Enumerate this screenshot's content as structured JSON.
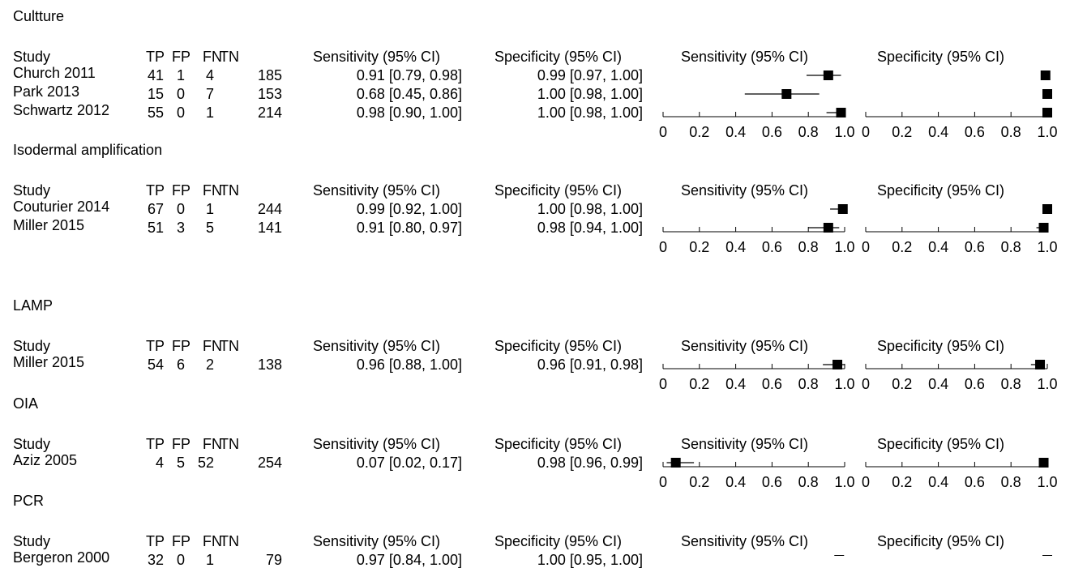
{
  "table_headers": {
    "study": "Study",
    "tp": "TP",
    "fp": "FP",
    "fn": "FN",
    "tn": "TN",
    "sensitivity": "Sensitivity (95% CI)",
    "specificity": "Specificity (95% CI)"
  },
  "plot_headers": {
    "sensitivity": "Sensitivity (95% CI)",
    "specificity": "Specificity (95% CI)"
  },
  "axis_ticks": [
    "0",
    "0.2",
    "0.4",
    "0.6",
    "0.8",
    "1.0"
  ],
  "groups": [
    {
      "title": "Cultture",
      "studies": [
        {
          "name": "Church 2011",
          "tp": "41",
          "fp": "1",
          "fn": "4",
          "tn": "185",
          "sens_text": "0.91 [0.79, 0.98]",
          "spec_text": "0.99 [0.97, 1.00]"
        },
        {
          "name": "Park 2013",
          "tp": "15",
          "fp": "0",
          "fn": "7",
          "tn": "153",
          "sens_text": "0.68 [0.45, 0.86]",
          "spec_text": "1.00 [0.98, 1.00]"
        },
        {
          "name": "Schwartz 2012",
          "tp": "55",
          "fp": "0",
          "fn": "1",
          "tn": "214",
          "sens_text": "0.98 [0.90, 1.00]",
          "spec_text": "1.00 [0.98, 1.00]"
        }
      ]
    },
    {
      "title": "Isodermal amplification",
      "studies": [
        {
          "name": "Couturier 2014",
          "tp": "67",
          "fp": "0",
          "fn": "1",
          "tn": "244",
          "sens_text": "0.99 [0.92, 1.00]",
          "spec_text": "1.00 [0.98, 1.00]"
        },
        {
          "name": "Miller 2015",
          "tp": "51",
          "fp": "3",
          "fn": "5",
          "tn": "141",
          "sens_text": "0.91 [0.80, 0.97]",
          "spec_text": "0.98 [0.94, 1.00]"
        }
      ]
    },
    {
      "title": "LAMP",
      "studies": [
        {
          "name": "Miller 2015",
          "tp": "54",
          "fp": "6",
          "fn": "2",
          "tn": "138",
          "sens_text": "0.96 [0.88, 1.00]",
          "spec_text": "0.96 [0.91, 0.98]"
        }
      ]
    },
    {
      "title": "OIA",
      "studies": [
        {
          "name": "Aziz 2005",
          "tp": "4",
          "fp": "5",
          "fn": "52",
          "tn": "254",
          "sens_text": "0.07 [0.02, 0.17]",
          "spec_text": "0.98 [0.96, 0.99]"
        }
      ]
    },
    {
      "title": "PCR",
      "studies": [
        {
          "name": "Bergeron 2000",
          "tp": "32",
          "fp": "0",
          "fn": "1",
          "tn": "79",
          "sens_text": "0.97 [0.84, 1.00]",
          "spec_text": "1.00 [0.95, 1.00]"
        }
      ]
    }
  ],
  "chart_data": {
    "type": "forest",
    "xlim": [
      0,
      1
    ],
    "x_ticks": [
      0,
      0.2,
      0.4,
      0.6,
      0.8,
      1.0
    ],
    "panels": [
      "Sensitivity (95% CI)",
      "Specificity (95% CI)"
    ],
    "groups": [
      {
        "title": "Cultture",
        "studies": [
          {
            "name": "Church 2011",
            "sensitivity": [
              0.91,
              0.79,
              0.98
            ],
            "specificity": [
              0.99,
              0.97,
              1.0
            ]
          },
          {
            "name": "Park 2013",
            "sensitivity": [
              0.68,
              0.45,
              0.86
            ],
            "specificity": [
              1.0,
              0.98,
              1.0
            ]
          },
          {
            "name": "Schwartz 2012",
            "sensitivity": [
              0.98,
              0.9,
              1.0
            ],
            "specificity": [
              1.0,
              0.98,
              1.0
            ]
          }
        ]
      },
      {
        "title": "Isodermal amplification",
        "studies": [
          {
            "name": "Couturier 2014",
            "sensitivity": [
              0.99,
              0.92,
              1.0
            ],
            "specificity": [
              1.0,
              0.98,
              1.0
            ]
          },
          {
            "name": "Miller 2015",
            "sensitivity": [
              0.91,
              0.8,
              0.97
            ],
            "specificity": [
              0.98,
              0.94,
              1.0
            ]
          }
        ]
      },
      {
        "title": "LAMP",
        "studies": [
          {
            "name": "Miller 2015",
            "sensitivity": [
              0.96,
              0.88,
              1.0
            ],
            "specificity": [
              0.96,
              0.91,
              0.98
            ]
          }
        ]
      },
      {
        "title": "OIA",
        "studies": [
          {
            "name": "Aziz 2005",
            "sensitivity": [
              0.07,
              0.02,
              0.17
            ],
            "specificity": [
              0.98,
              0.96,
              0.99
            ]
          }
        ]
      },
      {
        "title": "PCR",
        "studies": [
          {
            "name": "Bergeron 2000",
            "sensitivity": [
              0.97,
              0.84,
              1.0
            ],
            "specificity": [
              1.0,
              0.95,
              1.0
            ]
          }
        ]
      }
    ]
  }
}
